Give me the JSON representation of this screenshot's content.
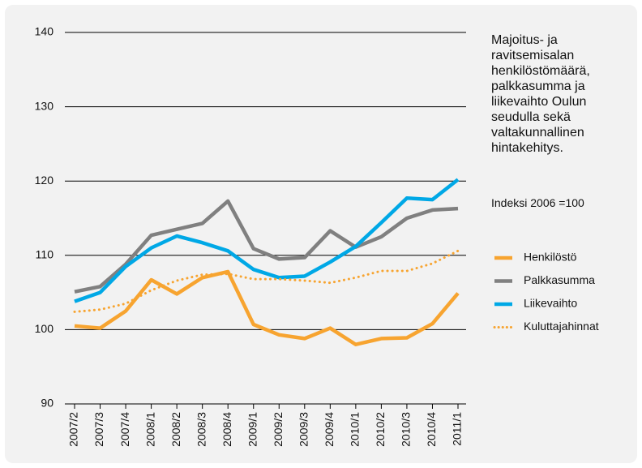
{
  "chart_data": {
    "type": "line",
    "title": "Majoitus- ja ravitsemisalan henkilöstömäärä, palkkasumma ja liikevaihto Oulun seudulla sekä valtakunnallinen hintakehitys.",
    "subtitle": "Indeksi 2006 =100",
    "categories": [
      "2007/2",
      "2007/3",
      "2007/4",
      "2008/1",
      "2008/2",
      "2008/3",
      "2008/4",
      "2009/1",
      "2009/2",
      "2009/3",
      "2009/4",
      "2010/1",
      "2010/2",
      "2010/3",
      "2010/4",
      "2011/1"
    ],
    "series": [
      {
        "name": "Henkilöstö",
        "color": "#f7a430",
        "style": "solid",
        "values": [
          100.5,
          100.2,
          102.5,
          106.7,
          104.8,
          107,
          107.8,
          100.7,
          99.3,
          98.8,
          100.2,
          98,
          98.8,
          98.9,
          100.8,
          104.9
        ]
      },
      {
        "name": "Palkkasumma",
        "color": "#808080",
        "style": "solid",
        "values": [
          105.1,
          105.8,
          108.8,
          112.7,
          113.5,
          114.3,
          117.3,
          110.9,
          109.5,
          109.7,
          113.3,
          111.1,
          112.5,
          115,
          116.1,
          116.3
        ]
      },
      {
        "name": "Liikevaihto",
        "color": "#00a8e6",
        "style": "solid",
        "values": [
          103.8,
          105,
          108.5,
          111,
          112.6,
          111.7,
          110.6,
          108.1,
          107,
          107.2,
          109.1,
          111.2,
          114.4,
          117.7,
          117.5,
          120.2
        ]
      },
      {
        "name": "Kuluttajahinnat",
        "color": "#f7a430",
        "style": "dotted",
        "values": [
          102.4,
          102.7,
          103.5,
          105.3,
          106.6,
          107.4,
          107.5,
          106.8,
          106.8,
          106.6,
          106.3,
          107,
          107.9,
          107.9,
          108.9,
          110.6
        ]
      }
    ],
    "ylim": [
      90,
      140
    ],
    "yticks": [
      90,
      100,
      110,
      120,
      130,
      140
    ],
    "grid": true,
    "legend": "right"
  }
}
